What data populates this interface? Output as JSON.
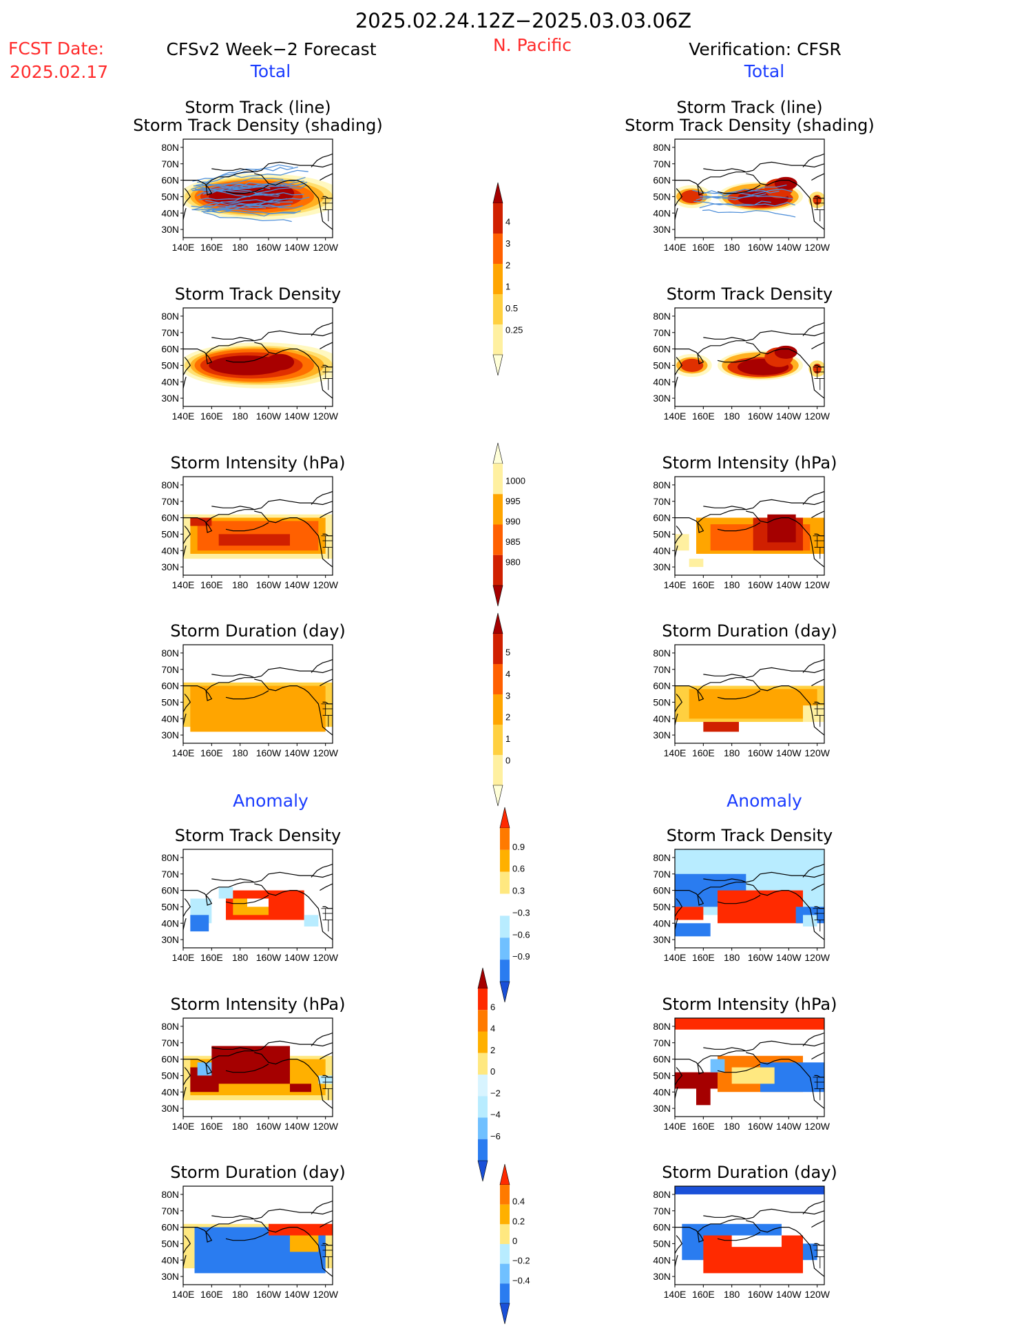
{
  "header": {
    "period": "2025.02.24.12Z−2025.03.03.06Z",
    "region": "N. Pacific",
    "fcst_label": "FCST Date:",
    "fcst_date": "2025.02.17",
    "left_title": "CFSv2 Week−2 Forecast",
    "right_title": "Verification: CFSR",
    "section_total": "Total",
    "section_anomaly": "Anomaly"
  },
  "colors": {
    "title": "#000000",
    "red": "#ff2a2a",
    "blue": "#1a3cff",
    "coast": "#000000",
    "track": "#4f8fd9"
  },
  "axes": {
    "lat_ticks": [
      "80N",
      "70N",
      "60N",
      "50N",
      "40N",
      "30N"
    ],
    "lon_ticks": [
      "140E",
      "160E",
      "180",
      "160W",
      "140W",
      "120W"
    ],
    "lat_range": [
      25,
      85
    ],
    "lon_range": [
      "140E",
      "115W"
    ]
  },
  "panels": {
    "track_line": "Storm Track (line)",
    "track_density_shading": "Storm Track Density (shading)",
    "density": "Storm Track Density",
    "intensity": "Storm Intensity (hPa)",
    "duration": "Storm Duration (day)"
  },
  "colorbars": [
    {
      "id": "density_total",
      "labels": [
        "4",
        "3",
        "2",
        "1",
        "0.5",
        "0.25"
      ],
      "colors": [
        "#a50000",
        "#d02000",
        "#ff6000",
        "#ffa500",
        "#ffd040",
        "#fff0a0",
        "#ffffd8"
      ]
    },
    {
      "id": "intensity_total",
      "labels": [
        "1000",
        "995",
        "990",
        "985",
        "980"
      ],
      "colors": [
        "#ffffd8",
        "#fff0a0",
        "#ffa500",
        "#ff6000",
        "#d02000",
        "#a50000"
      ]
    },
    {
      "id": "duration_total",
      "labels": [
        "5",
        "4",
        "3",
        "2",
        "1",
        "0"
      ],
      "colors": [
        "#a50000",
        "#d02000",
        "#ff6000",
        "#ffa500",
        "#ffd040",
        "#fff0a0",
        "#ffffd8"
      ]
    },
    {
      "id": "density_anom",
      "labels": [
        "0.9",
        "0.6",
        "0.3",
        "−0.3",
        "−0.6",
        "−0.9"
      ],
      "colors": [
        "#ff2a00",
        "#ff7a00",
        "#ffb000",
        "#ffe880",
        "#ffffff",
        "#b8ecff",
        "#70c0ff",
        "#2a7cf0",
        "#1a50d8"
      ]
    },
    {
      "id": "intensity_anom",
      "labels": [
        "6",
        "4",
        "2",
        "0",
        "−2",
        "−4",
        "−6"
      ],
      "colors": [
        "#a50000",
        "#ff2a00",
        "#ff7a00",
        "#ffb000",
        "#ffe880",
        "#d8f4ff",
        "#b8ecff",
        "#70c0ff",
        "#2a7cf0",
        "#1a50d8"
      ]
    },
    {
      "id": "duration_anom",
      "labels": [
        "0.4",
        "0.2",
        "0",
        "−0.2",
        "−0.4"
      ],
      "colors": [
        "#ff2a00",
        "#ff7a00",
        "#ffb000",
        "#ffe880",
        "#b8ecff",
        "#70c0ff",
        "#2a7cf0",
        "#1a50d8"
      ]
    }
  ],
  "chart_data": [
    {
      "type": "heatmap",
      "column": "CFSv2 Week−2 Forecast",
      "section": "Total",
      "title": "Storm Track (line) / Storm Track Density (shading)",
      "shading": [
        {
          "lon": [
            160,
            220
          ],
          "lat": [
            42,
            58
          ],
          "value": 4
        },
        {
          "lon": [
            145,
            250
          ],
          "lat": [
            38,
            62
          ],
          "value": 1
        }
      ],
      "lines": "many storm tracks 145E-135W, 40N-60N"
    },
    {
      "type": "heatmap",
      "column": "CFSv2 Week−2 Forecast",
      "section": "Total",
      "title": "Storm Track Density",
      "core": {
        "lon": [
          160,
          215
        ],
        "lat": [
          42,
          58
        ],
        "value": 4
      },
      "extent": {
        "lon": [
          145,
          250
        ],
        "lat": [
          35,
          62
        ],
        "value": 0.25
      }
    },
    {
      "type": "heatmap",
      "column": "CFSv2 Week−2 Forecast",
      "section": "Total",
      "title": "Storm Intensity (hPa)",
      "core": {
        "lon": [
          175,
          215
        ],
        "lat": [
          42,
          52
        ],
        "value": 985
      },
      "extent": {
        "lon": [
          140,
          250
        ],
        "lat": [
          35,
          65
        ],
        "value": 1000
      }
    },
    {
      "type": "heatmap",
      "column": "CFSv2 Week−2 Forecast",
      "section": "Total",
      "title": "Storm Duration (day)",
      "core": {
        "lon": [
          150,
          250
        ],
        "lat": [
          35,
          62
        ],
        "value": 2
      },
      "extent": {
        "lon": [
          140,
          250
        ],
        "lat": [
          30,
          62
        ],
        "value": 1
      }
    },
    {
      "type": "heatmap",
      "column": "CFSv2 Week−2 Forecast",
      "section": "Anomaly",
      "title": "Storm Track Density",
      "positive": {
        "lon": [
          170,
          220
        ],
        "lat": [
          40,
          60
        ],
        "value": 0.9
      },
      "negative": {
        "lon": [
          140,
          160
        ],
        "lat": [
          35,
          45
        ],
        "value": -0.6
      }
    },
    {
      "type": "heatmap",
      "column": "CFSv2 Week−2 Forecast",
      "section": "Anomaly",
      "title": "Storm Intensity (hPa)",
      "positive": {
        "lon": [
          160,
          215
        ],
        "lat": [
          45,
          68
        ],
        "value": 6
      },
      "negative": {
        "lon": [
          150,
          160
        ],
        "lat": [
          50,
          60
        ],
        "value": -2
      }
    },
    {
      "type": "heatmap",
      "column": "CFSv2 Week−2 Forecast",
      "section": "Anomaly",
      "title": "Storm Duration (day)",
      "negative": {
        "lon": [
          150,
          240
        ],
        "lat": [
          35,
          62
        ],
        "value": -0.4
      },
      "positive": {
        "lon": [
          205,
          245
        ],
        "lat": [
          55,
          62
        ],
        "value": 0.4
      }
    },
    {
      "type": "heatmap",
      "column": "Verification: CFSR",
      "section": "Total",
      "title": "Storm Track (line) / Storm Track Density (shading)",
      "shading": [
        {
          "lon": [
            170,
            225
          ],
          "lat": [
            42,
            60
          ],
          "value": 4
        },
        {
          "lon": [
            140,
            165
          ],
          "lat": [
            45,
            55
          ],
          "value": 3
        },
        {
          "lon": [
            238,
            244
          ],
          "lat": [
            46,
            50
          ],
          "value": 3
        }
      ]
    },
    {
      "type": "heatmap",
      "column": "Verification: CFSR",
      "section": "Total",
      "title": "Storm Track Density",
      "core": {
        "lon": [
          170,
          225
        ],
        "lat": [
          42,
          60
        ],
        "value": 4
      },
      "extent": {
        "lon": [
          140,
          245
        ],
        "lat": [
          35,
          62
        ],
        "value": 0.25
      }
    },
    {
      "type": "heatmap",
      "column": "Verification: CFSR",
      "section": "Total",
      "title": "Storm Intensity (hPa)",
      "core": {
        "lon": [
          200,
          225
        ],
        "lat": [
          40,
          60
        ],
        "value": 980
      },
      "extent": {
        "lon": [
          140,
          245
        ],
        "lat": [
          35,
          65
        ],
        "value": 1000
      }
    },
    {
      "type": "heatmap",
      "column": "Verification: CFSR",
      "section": "Total",
      "title": "Storm Duration (day)",
      "core": {
        "lon": [
          160,
          190
        ],
        "lat": [
          32,
          38
        ],
        "value": 4
      },
      "extent": {
        "lon": [
          140,
          245
        ],
        "lat": [
          32,
          60
        ],
        "value": 1
      }
    },
    {
      "type": "heatmap",
      "column": "Verification: CFSR",
      "section": "Anomaly",
      "title": "Storm Track Density",
      "positive": {
        "lon": [
          170,
          230
        ],
        "lat": [
          40,
          60
        ],
        "value": 0.9
      },
      "negative": {
        "lon": [
          140,
          250
        ],
        "lat": [
          35,
          80
        ],
        "value": -0.9
      }
    },
    {
      "type": "heatmap",
      "column": "Verification: CFSR",
      "section": "Anomaly",
      "title": "Storm Intensity (hPa)",
      "positive": {
        "lon": [
          140,
          220
        ],
        "lat": [
          32,
          60
        ],
        "value": 6
      },
      "negative": {
        "lon": [
          200,
          245
        ],
        "lat": [
          40,
          62
        ],
        "value": -6
      }
    },
    {
      "type": "heatmap",
      "column": "Verification: CFSR",
      "section": "Anomaly",
      "title": "Storm Duration (day)",
      "negative": {
        "lon": [
          140,
          240
        ],
        "lat": [
          40,
          65
        ],
        "value": -0.4
      },
      "positive": {
        "lon": [
          160,
          230
        ],
        "lat": [
          32,
          62
        ],
        "value": 0.4
      }
    }
  ]
}
